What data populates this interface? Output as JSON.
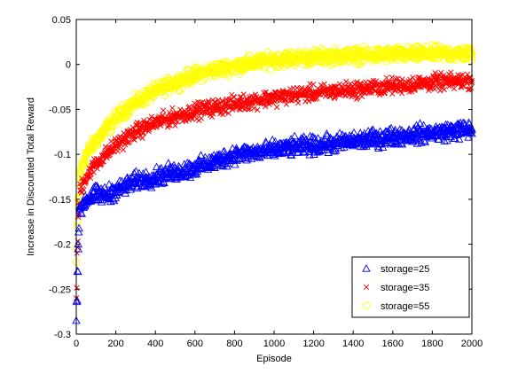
{
  "chart_data": {
    "type": "scatter",
    "title": "",
    "xlabel": "Episode",
    "ylabel": "Increase in Discounted Total Reward",
    "xlim": [
      0,
      2000
    ],
    "ylim": [
      -0.3,
      0.05
    ],
    "xticks": [
      0,
      200,
      400,
      600,
      800,
      1000,
      1200,
      1400,
      1600,
      1800,
      2000
    ],
    "xtick_labels": [
      "0",
      "200",
      "400",
      "600",
      "800",
      "1000",
      "1200",
      "1400",
      "1600",
      "1800",
      "2000"
    ],
    "yticks": [
      -0.3,
      -0.25,
      -0.2,
      -0.15,
      -0.1,
      -0.05,
      0,
      0.05
    ],
    "ytick_labels": [
      "-0.3",
      "-0.25",
      "-0.2",
      "-0.15",
      "-0.1",
      "-0.05",
      "0",
      "0.05"
    ],
    "grid": false,
    "legend_position": "bottom-right",
    "series": [
      {
        "name": "storage=25",
        "marker": "triangle",
        "color": "#0000ff",
        "x": [
          0,
          10,
          20,
          50,
          100,
          150,
          200,
          250,
          300,
          400,
          500,
          600,
          700,
          800,
          900,
          1000,
          1100,
          1200,
          1300,
          1400,
          1500,
          1600,
          1700,
          1800,
          1900,
          2000
        ],
        "y": [
          -0.285,
          -0.2,
          -0.16,
          -0.15,
          -0.145,
          -0.145,
          -0.14,
          -0.135,
          -0.13,
          -0.125,
          -0.12,
          -0.115,
          -0.108,
          -0.1,
          -0.098,
          -0.095,
          -0.092,
          -0.09,
          -0.088,
          -0.085,
          -0.083,
          -0.08,
          -0.078,
          -0.076,
          -0.074,
          -0.072
        ]
      },
      {
        "name": "storage=35",
        "marker": "x",
        "color": "#ff0000",
        "x": [
          0,
          10,
          20,
          50,
          100,
          150,
          200,
          250,
          300,
          400,
          500,
          600,
          700,
          800,
          900,
          1000,
          1100,
          1200,
          1300,
          1400,
          1500,
          1600,
          1700,
          1800,
          1900,
          2000
        ],
        "y": [
          -0.26,
          -0.17,
          -0.14,
          -0.125,
          -0.11,
          -0.1,
          -0.09,
          -0.082,
          -0.075,
          -0.065,
          -0.058,
          -0.052,
          -0.048,
          -0.044,
          -0.04,
          -0.037,
          -0.034,
          -0.032,
          -0.03,
          -0.028,
          -0.026,
          -0.024,
          -0.022,
          -0.02,
          -0.019,
          -0.018
        ]
      },
      {
        "name": "storage=55",
        "marker": "circle",
        "color": "#ffff00",
        "x": [
          0,
          10,
          20,
          50,
          100,
          150,
          200,
          250,
          300,
          400,
          500,
          600,
          700,
          800,
          900,
          1000,
          1100,
          1200,
          1300,
          1400,
          1500,
          1600,
          1700,
          1800,
          1900,
          2000
        ],
        "y": [
          -0.22,
          -0.15,
          -0.12,
          -0.1,
          -0.085,
          -0.072,
          -0.06,
          -0.05,
          -0.042,
          -0.03,
          -0.02,
          -0.012,
          -0.006,
          -0.002,
          0.002,
          0.005,
          0.007,
          0.008,
          0.009,
          0.01,
          0.01,
          0.011,
          0.011,
          0.012,
          0.012,
          0.012
        ]
      }
    ]
  }
}
